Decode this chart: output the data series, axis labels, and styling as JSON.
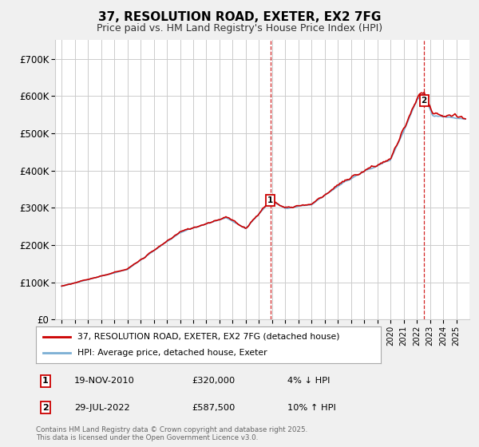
{
  "title": "37, RESOLUTION ROAD, EXETER, EX2 7FG",
  "subtitle": "Price paid vs. HM Land Registry's House Price Index (HPI)",
  "ylim": [
    0,
    750000
  ],
  "yticks": [
    0,
    100000,
    200000,
    300000,
    400000,
    500000,
    600000,
    700000
  ],
  "ytick_labels": [
    "£0",
    "£100K",
    "£200K",
    "£300K",
    "£400K",
    "£500K",
    "£600K",
    "£700K"
  ],
  "xlim_start": 1994.5,
  "xlim_end": 2026.0,
  "line1_color": "#cc0000",
  "line2_color": "#7bafd4",
  "line1_label": "37, RESOLUTION ROAD, EXETER, EX2 7FG (detached house)",
  "line2_label": "HPI: Average price, detached house, Exeter",
  "transaction1_date": 2010.88,
  "transaction1_price": 320000,
  "transaction2_date": 2022.55,
  "transaction2_price": 587500,
  "footer": "Contains HM Land Registry data © Crown copyright and database right 2025.\nThis data is licensed under the Open Government Licence v3.0.",
  "bg_color": "#f0f0f0",
  "plot_bg_color": "#ffffff",
  "grid_color": "#cccccc",
  "title_fontsize": 11,
  "subtitle_fontsize": 9
}
